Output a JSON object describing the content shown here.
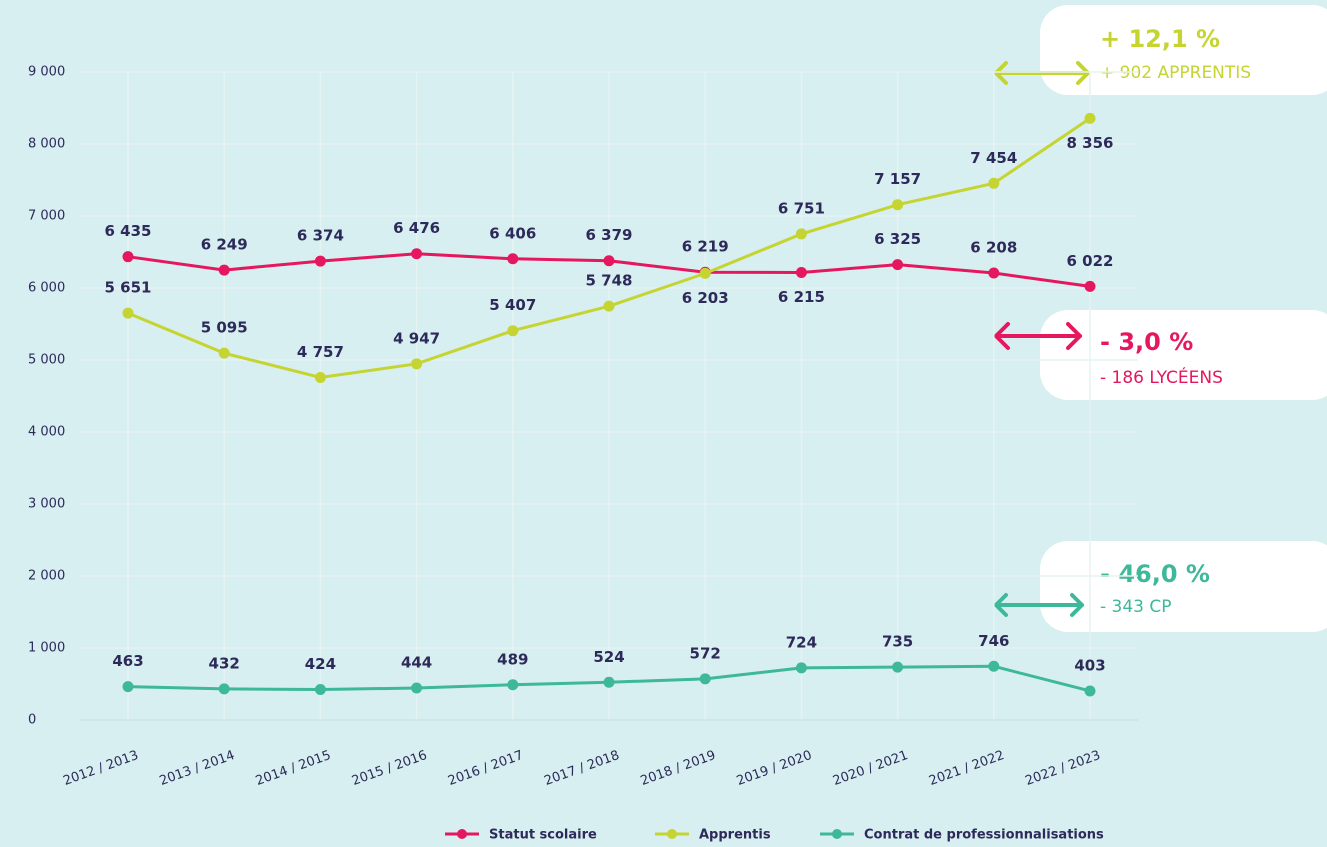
{
  "chart_data": {
    "type": "line",
    "categories": [
      "2012 / 2013",
      "2013 / 2014",
      "2014 / 2015",
      "2015 / 2016",
      "2016 / 2017",
      "2017 / 2018",
      "2018 / 2019",
      "2019 / 2020",
      "2020 / 2021",
      "2021 / 2022",
      "2022 / 2023"
    ],
    "series": [
      {
        "name": "Statut scolaire",
        "color": "#e5175f",
        "values": [
          6435,
          6249,
          6374,
          6476,
          6406,
          6379,
          6219,
          6215,
          6325,
          6208,
          6022
        ],
        "value_labels": [
          "6 435",
          "6 249",
          "6 374",
          "6 476",
          "6 406",
          "6 379",
          "6 219",
          "6 215",
          "6 325",
          "6 208",
          "6 022"
        ]
      },
      {
        "name": "Apprentis",
        "color": "#c5d430",
        "values": [
          5651,
          5095,
          4757,
          4947,
          5407,
          5748,
          6203,
          6751,
          7157,
          7454,
          8356
        ],
        "value_labels": [
          "5 651",
          "5 095",
          "4 757",
          "4 947",
          "5 407",
          "5 748",
          "6 203",
          "6 751",
          "7 157",
          "7 454",
          "8 356"
        ]
      },
      {
        "name": "Contrat de professionnalisations",
        "color": "#3db89a",
        "values": [
          463,
          432,
          424,
          444,
          489,
          524,
          572,
          724,
          735,
          746,
          403
        ]
      }
    ],
    "ylim": [
      0,
      9000
    ],
    "yticks": [
      0,
      {
        "value": 1000,
        "label": "1 000"
      },
      {
        "value": 2000,
        "label": "2 000"
      },
      {
        "value": 3000,
        "label": "3 000"
      },
      {
        "value": 4000,
        "label": "4 000"
      },
      {
        "value": 5000,
        "label": "5 000"
      },
      {
        "value": 6000,
        "label": "6 000"
      },
      {
        "value": 7000,
        "label": "7 000"
      },
      {
        "value": 8000,
        "label": "8 000"
      },
      {
        "value": 9000,
        "label": "9 000"
      }
    ],
    "grid": true,
    "legend": "bottom",
    "annotations": [
      {
        "pct": "+ 12,1 %",
        "text": "+ 902 APPRENTIS",
        "color": "#c5d430"
      },
      {
        "pct": "- 3,0 %",
        "text": "- 186 LYCÉENS",
        "color": "#e5175f"
      },
      {
        "pct": "- 46,0 %",
        "text": "- 343 CP",
        "color": "#3db89a"
      }
    ]
  }
}
